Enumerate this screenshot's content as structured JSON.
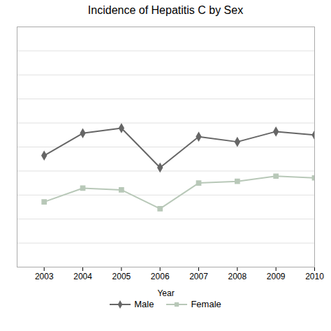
{
  "chart_data": {
    "type": "line",
    "title": "Incidence of Hepatitis C by Sex",
    "xlabel": "Year",
    "x": [
      2003,
      2004,
      2005,
      2006,
      2007,
      2008,
      2009,
      2010
    ],
    "series": [
      {
        "name": "Male",
        "color": "#666666",
        "marker": "diamond",
        "values": [
          6.5,
          7.8,
          8.1,
          5.8,
          7.6,
          7.3,
          7.9,
          7.7
        ]
      },
      {
        "name": "Female",
        "color": "#b8c8b8",
        "marker": "square",
        "values": [
          3.8,
          4.6,
          4.5,
          3.4,
          4.9,
          5.0,
          5.3,
          5.2
        ]
      }
    ],
    "xlim": [
      2002.3,
      2010.0
    ],
    "xticks": [
      2003,
      2004,
      2005,
      2006,
      2007,
      2008,
      2009,
      2010
    ],
    "ylim": [
      0,
      14
    ],
    "yticks": [
      0,
      1.4,
      2.8,
      4.2,
      5.6,
      7.0,
      8.4,
      9.8,
      11.2,
      12.6,
      14
    ],
    "grid": true,
    "tick_labels": "x",
    "legend": "bottom"
  }
}
